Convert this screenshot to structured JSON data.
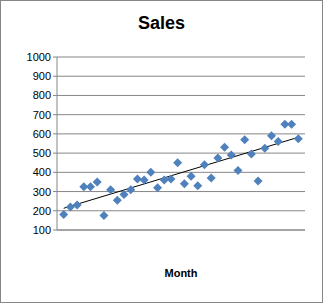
{
  "chart_data": {
    "type": "scatter",
    "title": "Sales",
    "x_label": "Month",
    "x": [
      1,
      2,
      3,
      4,
      5,
      6,
      7,
      8,
      9,
      10,
      11,
      12,
      13,
      14,
      15,
      16,
      17,
      18,
      19,
      20,
      21,
      22,
      23,
      24,
      25,
      26,
      27,
      28,
      29,
      30,
      31,
      32,
      33,
      34,
      35,
      36
    ],
    "values": [
      180,
      220,
      230,
      325,
      325,
      350,
      175,
      310,
      255,
      285,
      310,
      365,
      360,
      400,
      320,
      360,
      365,
      450,
      340,
      380,
      330,
      440,
      370,
      475,
      530,
      490,
      410,
      570,
      495,
      355,
      525,
      590,
      560,
      650,
      650,
      575
    ],
    "color": "#4f81bd",
    "marker": "diamond",
    "xlim": [
      0,
      37
    ],
    "ylim": [
      100,
      1000
    ],
    "yticks": [
      100,
      200,
      300,
      400,
      500,
      600,
      700,
      800,
      900,
      1000
    ],
    "grid": true,
    "tick_labels": "y"
  }
}
